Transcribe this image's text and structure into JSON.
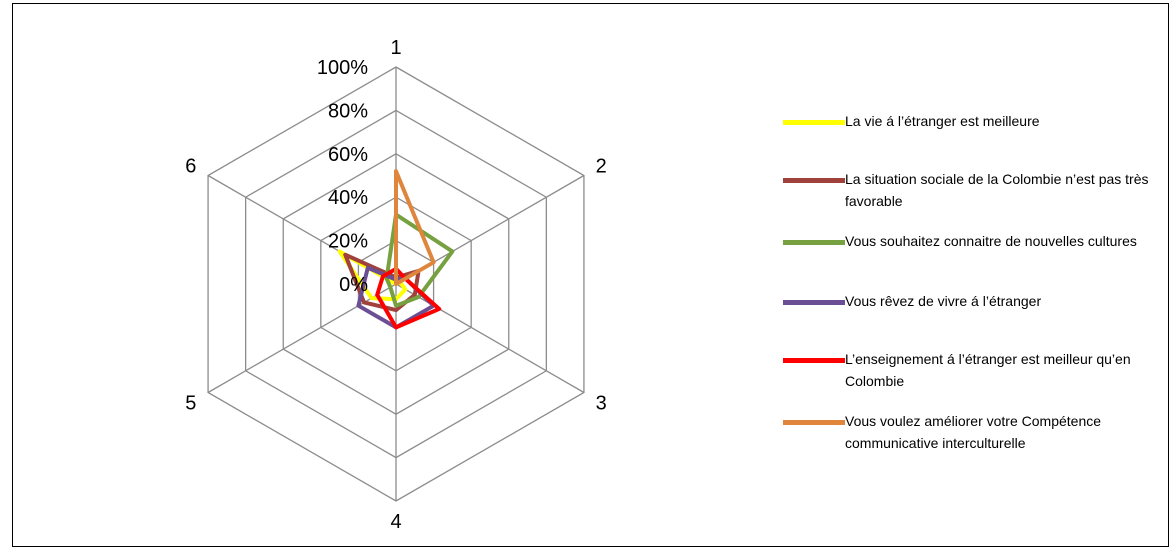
{
  "chart_data": {
    "type": "radar",
    "categories": [
      "1",
      "2",
      "3",
      "4",
      "5",
      "6"
    ],
    "radial_ticks": [
      "0%",
      "20%",
      "40%",
      "60%",
      "80%",
      "100%"
    ],
    "rlim": [
      0,
      100
    ],
    "grid": true,
    "legend_position": "right",
    "series": [
      {
        "name": "La vie á l’étranger est meilleure",
        "color": "#ffff00",
        "values": [
          0,
          2,
          5,
          7,
          13,
          30
        ]
      },
      {
        "name": "La situation sociale de la Colombie n’est pas très favorable",
        "color": "#a0413b",
        "values": [
          3,
          12,
          10,
          12,
          17,
          27
        ]
      },
      {
        "name": "Vous souhaitez connaitre de nouvelles cultures",
        "color": "#77a040",
        "values": [
          32,
          30,
          12,
          10,
          3,
          5
        ]
      },
      {
        "name": "Vous rêvez de vivre á l’étranger",
        "color": "#6b4e93",
        "values": [
          2,
          5,
          20,
          20,
          20,
          15
        ]
      },
      {
        "name": "L’enseignement á l’étranger est meilleur qu’en Colombie",
        "color": "#ff0000",
        "values": [
          7,
          5,
          23,
          20,
          10,
          7
        ]
      },
      {
        "name": "Vous voulez améliorer votre Compétence communicative interculturelle",
        "color": "#e0853c",
        "values": [
          52,
          20,
          0,
          0,
          0,
          0
        ]
      }
    ]
  }
}
